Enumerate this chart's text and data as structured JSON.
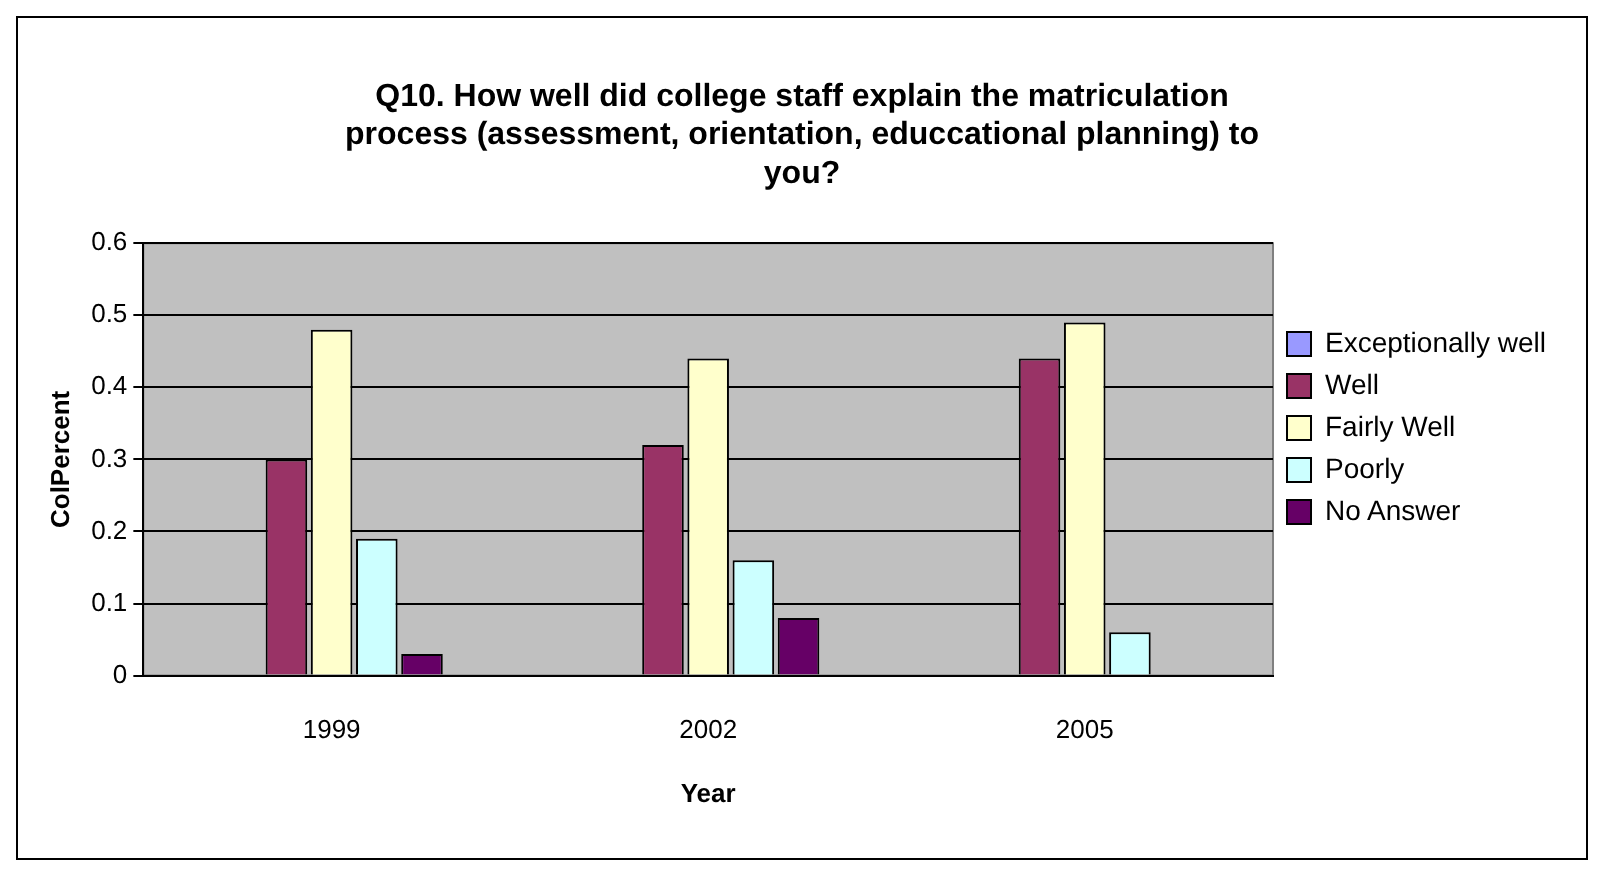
{
  "chart_data": {
    "type": "bar",
    "title": "Q10. How well did college staff explain the matriculation process (assessment, orientation, educcational planning) to you?",
    "xlabel": "Year",
    "ylabel": "ColPercent",
    "categories": [
      "1999",
      "2002",
      "2005"
    ],
    "series": [
      {
        "name": "Exceptionally well",
        "color": "#9999ff",
        "values": [
          0,
          0,
          0
        ]
      },
      {
        "name": "Well",
        "color": "#993366",
        "values": [
          0.3,
          0.32,
          0.44
        ]
      },
      {
        "name": "Fairly Well",
        "color": "#ffffcc",
        "values": [
          0.48,
          0.44,
          0.49
        ]
      },
      {
        "name": "Poorly",
        "color": "#ccffff",
        "values": [
          0.19,
          0.16,
          0.06
        ]
      },
      {
        "name": "No Answer",
        "color": "#660066",
        "values": [
          0.03,
          0.08,
          0
        ]
      }
    ],
    "ylim": [
      0,
      0.6
    ],
    "yticks": [
      0,
      0.1,
      0.2,
      0.3,
      0.4,
      0.5,
      0.6
    ],
    "grid": "y",
    "legend": "right"
  }
}
